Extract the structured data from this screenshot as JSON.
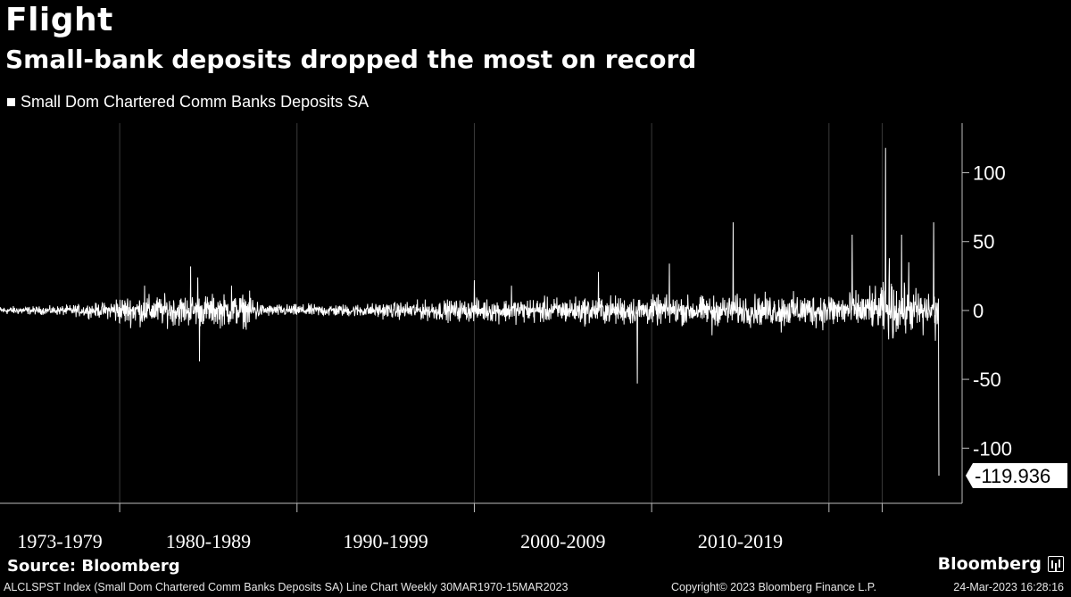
{
  "header": {
    "title": "Flight",
    "subtitle": "Small-bank deposits dropped the most on record"
  },
  "footer": {
    "source": "Source: Bloomberg",
    "brand": "Bloomberg",
    "description": "ALCLSPST Index (Small Dom Chartered Comm Banks Deposits SA) Line Chart  Weekly 30MAR1970-15MAR2023",
    "copyright": "Copyright© 2023 Bloomberg Finance L.P.",
    "timestamp": "24-Mar-2023 16:28:16"
  },
  "colors": {
    "background": "#000000",
    "series": "#ffffff",
    "grid": "#3a3a3a"
  },
  "icons": {
    "brand": "bloomberg-terminal-icon"
  },
  "chart_data": {
    "type": "line",
    "title": "Flight",
    "subtitle": "Small-bank deposits dropped the most on record",
    "series": [
      {
        "name": "Small Dom Chartered Comm Banks Deposits SA",
        "color": "#ffffff",
        "volatility": [
          [
            1973.0,
            2
          ],
          [
            1976.5,
            4
          ],
          [
            1976.6,
            7
          ],
          [
            1984.5,
            8
          ],
          [
            1985.0,
            3
          ],
          [
            1990.0,
            3
          ],
          [
            1995.0,
            5
          ],
          [
            2000.0,
            6
          ],
          [
            2005.0,
            7
          ],
          [
            2010.0,
            7
          ],
          [
            2015.0,
            8
          ],
          [
            2019.5,
            9
          ],
          [
            2020.2,
            14
          ],
          [
            2022.0,
            10
          ],
          [
            2023.2,
            8
          ]
        ],
        "spikes": [
          {
            "x": 1981.0,
            "y": 32
          },
          {
            "x": 1981.4,
            "y": 24
          },
          {
            "x": 1981.5,
            "y": -37
          },
          {
            "x": 1978.4,
            "y": 18
          },
          {
            "x": 1983.3,
            "y": 18
          },
          {
            "x": 1997.0,
            "y": 22
          },
          {
            "x": 1999.1,
            "y": 18
          },
          {
            "x": 2004.0,
            "y": 28
          },
          {
            "x": 2006.2,
            "y": -53
          },
          {
            "x": 2008.0,
            "y": 34
          },
          {
            "x": 2010.4,
            "y": -18
          },
          {
            "x": 2011.6,
            "y": 64
          },
          {
            "x": 2014.3,
            "y": -16
          },
          {
            "x": 2017.0,
            "y": 10
          },
          {
            "x": 2018.3,
            "y": 55
          },
          {
            "x": 2019.3,
            "y": 18
          },
          {
            "x": 2020.2,
            "y": 118
          },
          {
            "x": 2020.4,
            "y": 38
          },
          {
            "x": 2020.6,
            "y": -20
          },
          {
            "x": 2021.1,
            "y": 55
          },
          {
            "x": 2021.5,
            "y": 35
          },
          {
            "x": 2022.3,
            "y": -18
          },
          {
            "x": 2022.9,
            "y": 64
          },
          {
            "x": 2023.0,
            "y": -22
          },
          {
            "x": 2023.1,
            "y": -10
          },
          {
            "x": 2023.2,
            "y": -119.936
          }
        ],
        "last_value": -119.936,
        "last_label": "-119.936"
      }
    ],
    "x_period_labels": [
      "1973-1979",
      "1980-1989",
      "1990-1999",
      "2000-2009",
      "2010-2019"
    ],
    "x_range": [
      1970.25,
      2023.2
    ],
    "x_boundaries": [
      1977.0,
      1987.0,
      1997.0,
      2007.0,
      2017.0,
      2020.0
    ],
    "y_ticks": [
      "100",
      "50",
      "0",
      "-50",
      "-100"
    ],
    "ylim": [
      -140,
      136
    ],
    "y_axis_side": "right",
    "grid": true,
    "legend_position": "top-left"
  }
}
